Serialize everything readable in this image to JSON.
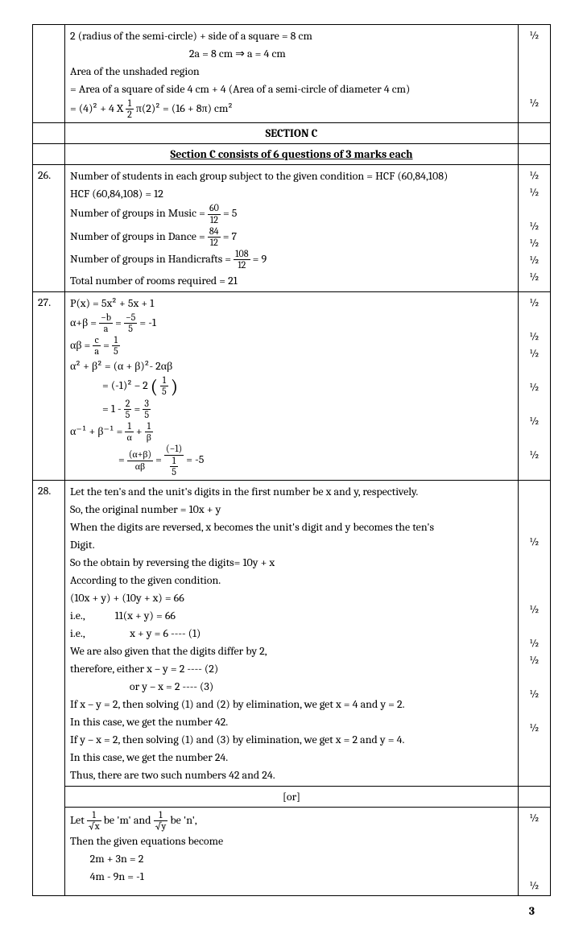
{
  "topRow": {
    "lines": [
      "2 (radius of the semi-circle) + side of a square = 8 cm",
      "                                                2a = 8 cm ⇒ a = 4 cm",
      "Area of the unshaded region",
      "= Area of a square of side 4 cm + 4 (Area of a semi-circle of diameter 4 cm)"
    ],
    "eqPrefix": "= (4)² + 4 X",
    "eqFrac": {
      "num": "1",
      "den": "2"
    },
    "eqSuffix": " π(2)² = (16 + 8π) cm²",
    "marks": [
      "½",
      "",
      "",
      "",
      "½"
    ]
  },
  "sectionC": {
    "header": "SECTION C",
    "sub": "Section C consists of 6 questions of 3 marks each"
  },
  "q26": {
    "num": "26.",
    "l1": "Number of students in each group subject to the given condition = HCF (60,84,108)",
    "l2": "HCF (60,84,108) = 12",
    "l3a": "Number of groups in Music = ",
    "l3f": {
      "num": "60",
      "den": "12"
    },
    "l3b": " = 5",
    "l4a": "Number of groups in Dance = ",
    "l4f": {
      "num": "84",
      "den": "12"
    },
    "l4b": " = 7",
    "l5a": "Number of groups in Handicrafts = ",
    "l5f": {
      "num": "108",
      "den": "12"
    },
    "l5b": " = 9",
    "l6": "Total number of rooms required = 21",
    "marks": "½\n½\n\n½\n½\n½\n½"
  },
  "q27": {
    "num": "27.",
    "l1": "P(x) = 5x² + 5x + 1",
    "l2a": "α+β = ",
    "l2f1": {
      "num": "−b",
      "den": "a"
    },
    "l2mid": " = ",
    "l2f2": {
      "num": "−5",
      "den": "5"
    },
    "l2b": " = -1",
    "l3a": "αβ = ",
    "l3f1": {
      "num": "c",
      "den": "a"
    },
    "l3mid": " = ",
    "l3f2": {
      "num": "1",
      "den": "5"
    },
    "l4": "α² + β²  = (α + β)²- 2αβ",
    "l5a": "= (-1)² – 2 ",
    "l5f": {
      "num": "1",
      "den": "5"
    },
    "l6a": "= 1 - ",
    "l6f1": {
      "num": "2",
      "den": "5"
    },
    "l6mid": " = ",
    "l6f2": {
      "num": "3",
      "den": "5"
    },
    "l7a": "α⁻¹ + β⁻¹ = ",
    "l7f1": {
      "num": "1",
      "den": "α"
    },
    "l7mid": " + ",
    "l7f2": {
      "num": "1",
      "den": "β"
    },
    "l8a": "= ",
    "l8f1": {
      "num": "(α+β)",
      "den": "αβ"
    },
    "l8mid": " = ",
    "l8f2num": "(−1)",
    "l8f2denf": {
      "num": "1",
      "den": "5"
    },
    "l8b": " = -5",
    "marks": "½\n\n½\n½\n\n½\n\n½\n\n½"
  },
  "q28": {
    "num": "28.",
    "lines1": [
      "Let the ten's and the unit's digits in the first number be x and y, respectively.",
      " So, the original number = 10x + y",
      " When the digits are reversed, x becomes the unit's digit and y becomes the ten's",
      " Digit.",
      "  So the obtain by reversing the digits= 10y + x",
      "According to the given condition.",
      "(10x + y) + (10y + x) = 66",
      " i.e.,            11(x + y) = 66",
      " i.e.,                  x + y = 6 ---- (1)",
      "We are also given that the digits differ by 2,",
      "therefore, either x – y = 2 ---- (2)",
      "                        or  y – x = 2 ---- (3)",
      "If x – y = 2, then solving (1) and (2) by elimination, we get x = 4 and y = 2.",
      " In this case, we get the number 42.",
      "If y – x = 2, then solving (1) and (3) by elimination, we get x = 2 and y = 4.",
      "In this case, we get the number 24.",
      " Thus, there are two such numbers 42 and 24."
    ],
    "marks1": "\n\n\n½\n\n\n\n½\n\n½\n½\n\n½\n\n½",
    "or": "[or]",
    "l2a": "Let ",
    "l2f1": {
      "num": "1",
      "den": "√x"
    },
    "l2mid": " be 'm' and ",
    "l2f2": {
      "num": "1",
      "den": "√y"
    },
    "l2b": " be 'n',",
    "l3": "Then the given equations become",
    "l4": "        2m + 3n = 2",
    "l5": "        4m - 9n = -1",
    "marks2": "½\n\n\n\n½"
  },
  "pageNum": "3"
}
